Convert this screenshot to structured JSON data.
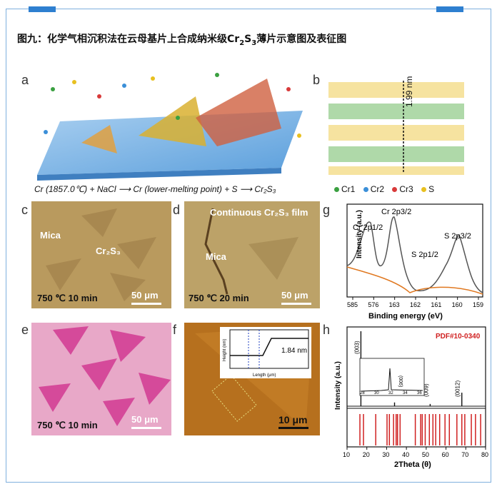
{
  "figure": {
    "caption_prefix": "图九：化学气相沉积法在云母基片上合成纳米级",
    "caption_formula_base": "Cr",
    "caption_formula_sub1": "2",
    "caption_formula_mid": "S",
    "caption_formula_sub2": "3",
    "caption_suffix": "薄片示意图及表征图"
  },
  "panel_labels": {
    "a": "a",
    "b": "b",
    "c": "c",
    "d": "d",
    "e": "e",
    "f": "f",
    "g": "g",
    "h": "h"
  },
  "panel_a": {
    "equation": "Cr (1857.0℃) + NaCl ⟶ Cr (lower-melting point) + S ⟶ Cr₂S₃"
  },
  "panel_b": {
    "thickness_label": "1.99 nm",
    "legend": [
      {
        "label": "Cr1",
        "color": "#3aa040"
      },
      {
        "label": "Cr2",
        "color": "#3b8fd8"
      },
      {
        "label": "Cr3",
        "color": "#d83a3a"
      },
      {
        "label": "S",
        "color": "#e8c020"
      }
    ]
  },
  "panel_c": {
    "label_mica": "Mica",
    "label_cr": "Cr₂S₃",
    "conditions": "750 ℃  10 min",
    "scale": "50 μm"
  },
  "panel_d": {
    "label_film": "Continuous Cr₂S₃ film",
    "label_mica": "Mica",
    "conditions": "750 ℃  20 min",
    "scale": "50 μm"
  },
  "panel_e": {
    "conditions": "750 ℃  10 min",
    "scale": "50 μm"
  },
  "panel_f": {
    "scale": "10 μm",
    "inset": {
      "ylabel": "Height (nm)",
      "xlabel": "Length (μm)",
      "step_label": "1.84 nm"
    }
  },
  "chart_data": [
    {
      "type": "line",
      "panel": "g",
      "xlabel": "Binding energy (eV)",
      "ylabel": "Intensity (a.u.)",
      "xticks": [
        "585",
        "576",
        "163",
        "162",
        "161",
        "160",
        "159"
      ],
      "peaks": [
        {
          "name": "Cr 2p1/2",
          "x": "585"
        },
        {
          "name": "Cr 2p3/2",
          "x": "576"
        },
        {
          "name": "S 2p1/2",
          "x": "162"
        },
        {
          "name": "S 2p3/2",
          "x": "161"
        }
      ]
    },
    {
      "type": "bar",
      "panel": "h",
      "xlabel": "2Theta (θ)",
      "ylabel": "Intensity (a.u.)",
      "xlim": [
        10,
        80
      ],
      "xticks": [
        10,
        20,
        30,
        40,
        50,
        60,
        70,
        80
      ],
      "reference_label": "PDF#10-0340",
      "peak_labels": [
        {
          "label": "(003)",
          "x": 17
        },
        {
          "label": "(006)",
          "x": 34
        },
        {
          "label": "(009)",
          "x": 52
        },
        {
          "label": "(0012)",
          "x": 68
        }
      ],
      "observed_peaks": [
        {
          "x": 17,
          "y": 1.0
        },
        {
          "x": 34,
          "y": 0.05
        },
        {
          "x": 52,
          "y": 0.03
        },
        {
          "x": 68,
          "y": 0.18
        }
      ],
      "reference_lines": [
        16.5,
        18.3,
        24.5,
        30.2,
        31.4,
        33.5,
        34.8,
        35.5,
        36.8,
        44.5,
        47.2,
        48.0,
        49.5,
        51.6,
        53.4,
        54.8,
        56.8,
        59.5,
        61.7,
        65.5,
        68.0,
        69.5,
        72.8,
        74.9,
        77.5
      ],
      "inset": {
        "xticks": [
          28,
          30,
          32,
          34,
          36
        ],
        "peak_label": "(006)"
      }
    }
  ]
}
